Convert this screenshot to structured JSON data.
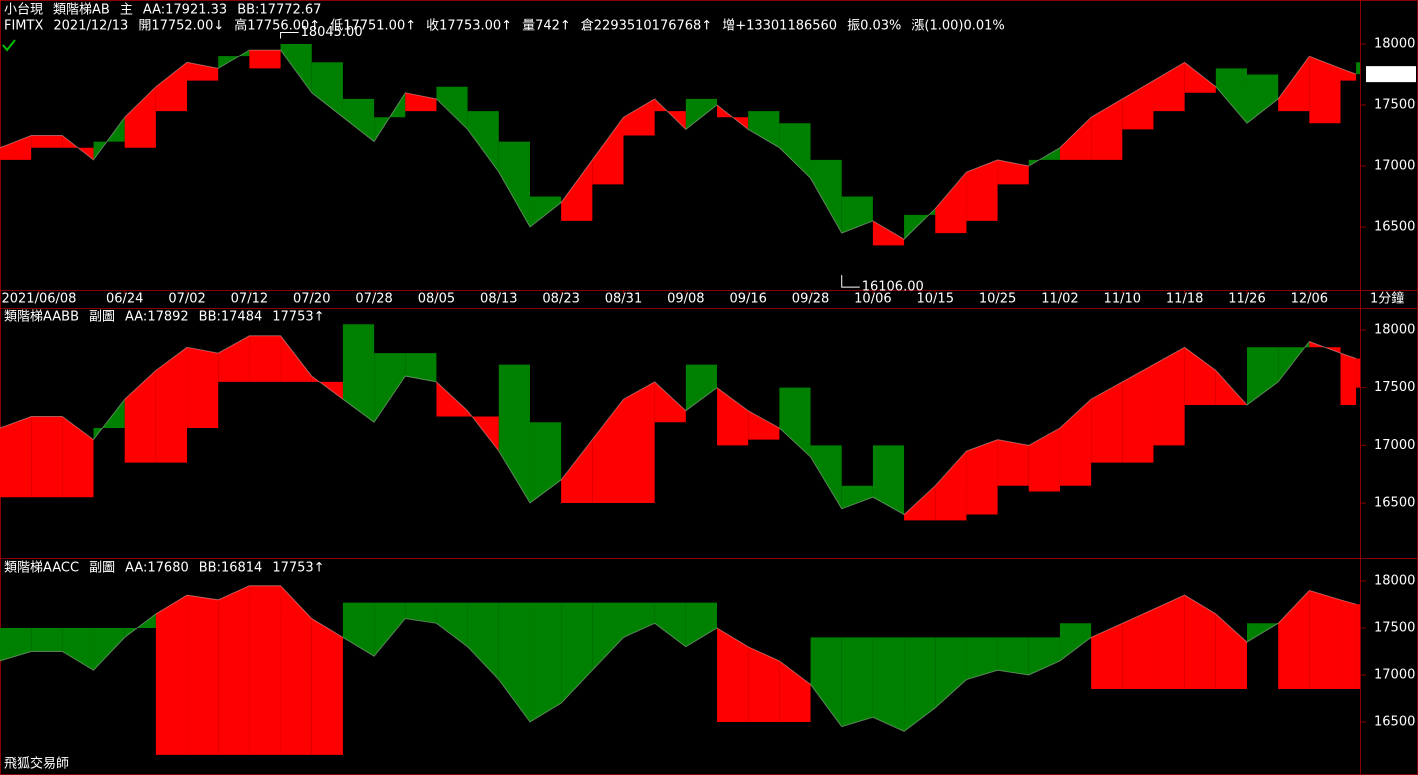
{
  "chart_data": [
    {
      "type": "area",
      "labels": [
        {
          "text": "小台現",
          "color": "#ffffff"
        },
        {
          "text": "類階梯AB",
          "color": "#ffffff"
        },
        {
          "text": "主",
          "color": "#ffffff"
        },
        {
          "text": "AA:17921.33",
          "color": "#ffff00"
        },
        {
          "text": "BB:17772.67",
          "color": "#ffff00"
        }
      ],
      "info": [
        {
          "text": "FIMTX",
          "color": "#7fbf7f"
        },
        {
          "text": "2021/12/13",
          "color": "#ffffff"
        },
        {
          "text": "開17752.00↓",
          "color": "#ffffff"
        },
        {
          "text": "高17756.00↑",
          "color": "#c04040"
        },
        {
          "text": "低17751.00↑",
          "color": "#ffffff"
        },
        {
          "text": "收17753.00↑",
          "color": "#c04040"
        },
        {
          "text": "量742↑",
          "color": "#ffffff"
        },
        {
          "text": "倉2293510176768↑",
          "color": "#ffffff"
        },
        {
          "text": "增+13301186560",
          "color": "#ffffff"
        },
        {
          "text": "振0.03%",
          "color": "#ffffff"
        },
        {
          "text": "漲(1.00)0.01%",
          "color": "#c04040"
        }
      ],
      "x": [
        -5,
        -1,
        3,
        7,
        11,
        15,
        19,
        23,
        27,
        31,
        35,
        39,
        43,
        47,
        51,
        55,
        59,
        63,
        67,
        71,
        75,
        79,
        83,
        87,
        91,
        95,
        99,
        103,
        107,
        111,
        115,
        119,
        123,
        127,
        131,
        135,
        139,
        143,
        147,
        151,
        155,
        159,
        163,
        167,
        169
      ],
      "values": [
        17150,
        17250,
        17250,
        17050,
        17400,
        17650,
        17850,
        17800,
        17950,
        17950,
        17600,
        17400,
        17200,
        17600,
        17550,
        17300,
        16950,
        16500,
        16700,
        17050,
        17400,
        17550,
        17300,
        17500,
        17300,
        17150,
        16900,
        16450,
        16550,
        16400,
        16650,
        16950,
        17050,
        17000,
        17150,
        17400,
        17550,
        17700,
        17850,
        17650,
        17350,
        17550,
        17900,
        17800,
        17753
      ],
      "ladder": [
        17050,
        17150,
        17150,
        17200,
        17150,
        17450,
        17700,
        17900,
        17800,
        18000,
        17850,
        17550,
        17400,
        17450,
        17650,
        17450,
        17200,
        16750,
        16550,
        16850,
        17250,
        17450,
        17550,
        17400,
        17450,
        17350,
        17050,
        16750,
        16350,
        16600,
        16450,
        16550,
        16850,
        17050,
        17050,
        17050,
        17300,
        17450,
        17600,
        17800,
        17750,
        17450,
        17350,
        17700,
        17850
      ],
      "colors": {
        "up": "#ff0000",
        "down": "#008000"
      },
      "xlim": [
        -5,
        169.5
      ],
      "xticks": [
        {
          "value": 0,
          "label": "2021/06/08"
        },
        {
          "value": 11,
          "label": "06/24"
        },
        {
          "value": 19,
          "label": "07/02"
        },
        {
          "value": 27,
          "label": "07/12"
        },
        {
          "value": 35,
          "label": "07/20"
        },
        {
          "value": 43,
          "label": "07/28"
        },
        {
          "value": 51,
          "label": "08/05"
        },
        {
          "value": 59,
          "label": "08/13"
        },
        {
          "value": 67,
          "label": "08/23"
        },
        {
          "value": 75,
          "label": "08/31"
        },
        {
          "value": 83,
          "label": "09/08"
        },
        {
          "value": 91,
          "label": "09/16"
        },
        {
          "value": 99,
          "label": "09/28"
        },
        {
          "value": 107,
          "label": "10/06"
        },
        {
          "value": 115,
          "label": "10/15"
        },
        {
          "value": 123,
          "label": "10/25"
        },
        {
          "value": 131,
          "label": "11/02"
        },
        {
          "value": 139,
          "label": "11/10"
        },
        {
          "value": 147,
          "label": "11/18"
        },
        {
          "value": 155,
          "label": "11/26"
        },
        {
          "value": 163,
          "label": "12/06"
        }
      ],
      "xlabel": "1分鐘",
      "ylim": [
        15984,
        18344
      ],
      "yticks": [
        16500,
        17000,
        17500,
        18000
      ],
      "annotations": [
        {
          "value": 18045,
          "label": "18045.00",
          "x": 31
        },
        {
          "value": 16106,
          "label": "16106.00",
          "x": 103
        }
      ],
      "last": 17753
    },
    {
      "type": "area",
      "labels": [
        {
          "text": "類階梯AABB",
          "color": "#ffffff"
        },
        {
          "text": "副圖",
          "color": "#ffffff"
        },
        {
          "text": "AA:17892",
          "color": "#ffff00"
        },
        {
          "text": "BB:17484",
          "color": "#ffff00"
        },
        {
          "text": "17753↑",
          "color": "#ff3030"
        }
      ],
      "x": [
        -5,
        -1,
        3,
        7,
        11,
        15,
        19,
        23,
        27,
        31,
        35,
        39,
        43,
        47,
        51,
        55,
        59,
        63,
        67,
        71,
        75,
        79,
        83,
        87,
        91,
        95,
        99,
        103,
        107,
        111,
        115,
        119,
        123,
        127,
        131,
        135,
        139,
        143,
        147,
        151,
        155,
        159,
        163,
        167,
        169
      ],
      "values": [
        17150,
        17250,
        17250,
        17050,
        17400,
        17650,
        17850,
        17800,
        17950,
        17950,
        17600,
        17400,
        17200,
        17600,
        17550,
        17300,
        16950,
        16500,
        16700,
        17050,
        17400,
        17550,
        17300,
        17500,
        17300,
        17150,
        16900,
        16450,
        16550,
        16400,
        16650,
        16950,
        17050,
        17000,
        17150,
        17400,
        17550,
        17700,
        17850,
        17650,
        17350,
        17550,
        17900,
        17800,
        17753
      ],
      "ladder": [
        16550,
        16550,
        16550,
        17150,
        16850,
        16850,
        17150,
        17550,
        17550,
        17550,
        17550,
        18050,
        17800,
        17800,
        17250,
        17250,
        17700,
        17200,
        16500,
        16500,
        16500,
        17200,
        17700,
        17000,
        17050,
        17500,
        17000,
        16650,
        17000,
        16350,
        16350,
        16400,
        16650,
        16600,
        16650,
        16850,
        16850,
        17000,
        17350,
        17350,
        17850,
        17850,
        17850,
        17350,
        17500
      ],
      "colors": {
        "up": "#ff0000",
        "down": "#008000"
      },
      "xlim": [
        -5,
        169.5
      ],
      "ylim": [
        16032,
        18182
      ],
      "yticks": [
        16500,
        17000,
        17500,
        18000
      ]
    },
    {
      "type": "area",
      "labels": [
        {
          "text": "類階梯AACC",
          "color": "#ffffff"
        },
        {
          "text": "副圖",
          "color": "#ffffff"
        },
        {
          "text": "AA:17680",
          "color": "#ffff00"
        },
        {
          "text": "BB:16814",
          "color": "#ffff00"
        },
        {
          "text": "17753↑",
          "color": "#ff3030"
        }
      ],
      "x": [
        -5,
        -1,
        3,
        7,
        11,
        15,
        19,
        23,
        27,
        31,
        35,
        39,
        43,
        47,
        51,
        55,
        59,
        63,
        67,
        71,
        75,
        79,
        83,
        87,
        91,
        95,
        99,
        103,
        107,
        111,
        115,
        119,
        123,
        127,
        131,
        135,
        139,
        143,
        147,
        151,
        155,
        159,
        163,
        167,
        169
      ],
      "values": [
        17150,
        17250,
        17250,
        17050,
        17400,
        17650,
        17850,
        17800,
        17950,
        17950,
        17600,
        17400,
        17200,
        17600,
        17550,
        17300,
        16950,
        16500,
        16700,
        17050,
        17400,
        17550,
        17300,
        17500,
        17300,
        17150,
        16900,
        16450,
        16550,
        16400,
        16650,
        16950,
        17050,
        17000,
        17150,
        17400,
        17550,
        17700,
        17850,
        17650,
        17350,
        17550,
        17900,
        17800,
        17753
      ],
      "ladder": [
        17500,
        17500,
        17500,
        17500,
        17500,
        16150,
        16150,
        16150,
        16150,
        16150,
        16150,
        17770,
        17770,
        17770,
        17770,
        17770,
        17770,
        17770,
        17770,
        17770,
        17770,
        17770,
        17770,
        16500,
        16500,
        16500,
        17400,
        17400,
        17400,
        17400,
        17400,
        17400,
        17400,
        17400,
        17550,
        16850,
        16850,
        16850,
        16850,
        16850,
        17550,
        16850,
        16850,
        16850,
        16850
      ],
      "colors": {
        "up": "#ff0000",
        "down": "#008000"
      },
      "xlim": [
        -5,
        169.5
      ],
      "ylim": [
        15957,
        18223
      ],
      "yticks": [
        16500,
        17000,
        17500,
        18000
      ]
    }
  ],
  "footer": "飛狐交易師"
}
